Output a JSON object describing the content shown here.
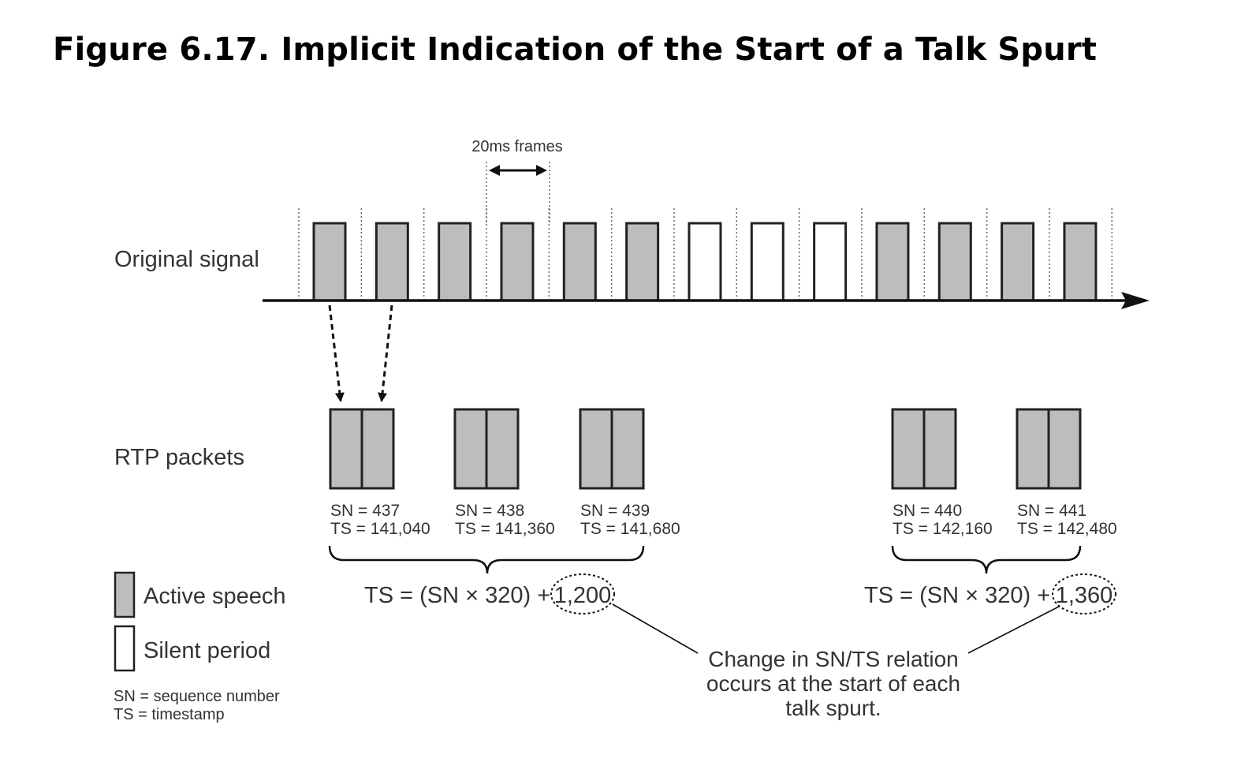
{
  "title": "Figure 6.17. Implicit Indication of the Start of a Talk Spurt",
  "frame_label": "20ms frames",
  "signal_label": "Original signal",
  "signal_frames": [
    "active",
    "active",
    "active",
    "active",
    "active",
    "active",
    "silent",
    "silent",
    "silent",
    "active",
    "active",
    "active",
    "active"
  ],
  "packets_label": "RTP packets",
  "packets": [
    {
      "sn": "SN = 437",
      "ts": "TS = 141,040"
    },
    {
      "sn": "SN = 438",
      "ts": "TS = 141,360"
    },
    {
      "sn": "SN = 439",
      "ts": "TS = 141,680"
    },
    {
      "sn": "SN = 440",
      "ts": "TS = 142,160"
    },
    {
      "sn": "SN = 441",
      "ts": "TS = 142,480"
    }
  ],
  "formula_left": {
    "text": "TS = (SN × 320) +",
    "offset": "1,200"
  },
  "formula_right": {
    "text": "TS = (SN × 320) +",
    "offset": "1,360"
  },
  "legend": {
    "active": "Active speech",
    "silent": "Silent period",
    "sn_note": "SN = sequence number",
    "ts_note": "TS = timestamp"
  },
  "callout": [
    "Change in SN/TS relation",
    "occurs at the start of each",
    "talk spurt."
  ],
  "colors": {
    "active": "#bdbdbd",
    "silent": "#ffffff",
    "stroke": "#222222",
    "text": "#333333"
  }
}
